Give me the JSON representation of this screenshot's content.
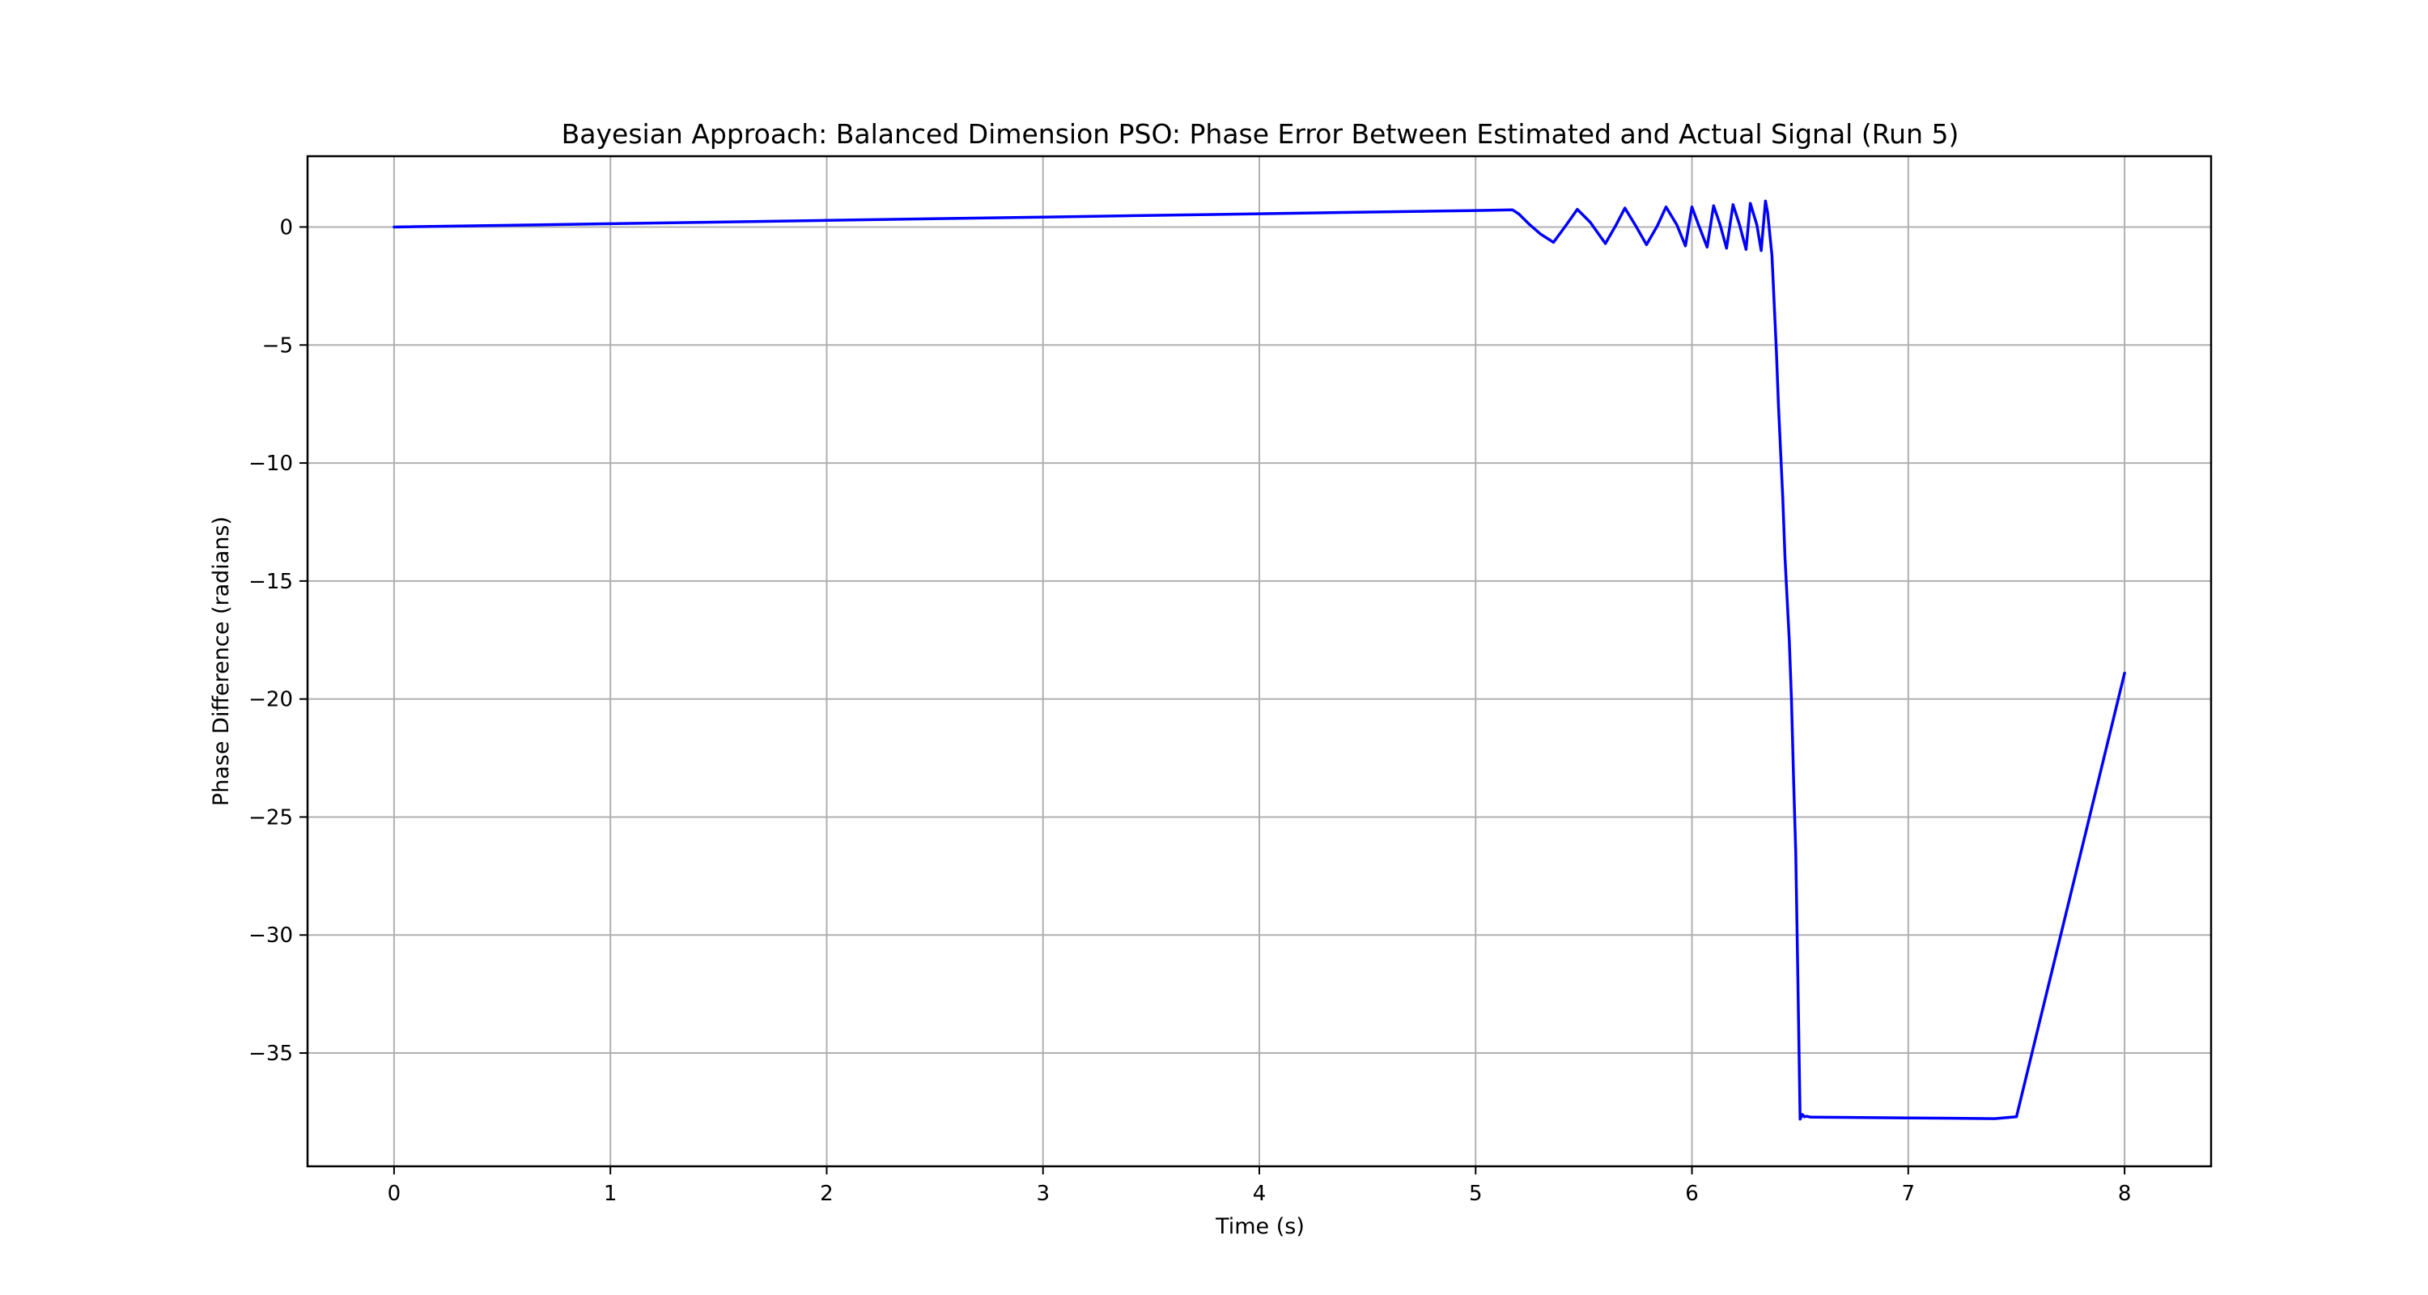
{
  "chart_data": {
    "type": "line",
    "title": "Bayesian Approach: Balanced Dimension PSO: Phase Error Between Estimated and Actual Signal (Run 5)",
    "xlabel": "Time (s)",
    "ylabel": "Phase Difference (radians)",
    "xlim": [
      -0.4,
      8.4
    ],
    "ylim": [
      -39.8,
      3.0
    ],
    "xticks": [
      0,
      1,
      2,
      3,
      4,
      5,
      6,
      7,
      8
    ],
    "yticks": [
      0,
      -5,
      -10,
      -15,
      -20,
      -25,
      -30,
      -35
    ],
    "xtick_labels": [
      "0",
      "1",
      "2",
      "3",
      "4",
      "5",
      "6",
      "7",
      "8"
    ],
    "ytick_labels": [
      "0",
      "−5",
      "−10",
      "−15",
      "−20",
      "−25",
      "−30",
      "−35"
    ],
    "grid": true,
    "series": [
      {
        "color": "#0000ff",
        "x": [
          0,
          1,
          2,
          3,
          4,
          5.0,
          5.17,
          5.2,
          5.25,
          5.3,
          5.36,
          5.42,
          5.47,
          5.53,
          5.6,
          5.65,
          5.69,
          5.74,
          5.79,
          5.84,
          5.88,
          5.93,
          5.97,
          6.0,
          6.03,
          6.07,
          6.1,
          6.13,
          6.16,
          6.19,
          6.22,
          6.25,
          6.27,
          6.3,
          6.32,
          6.34,
          6.35,
          6.37,
          6.39,
          6.4,
          6.42,
          6.43,
          6.45,
          6.46,
          6.47,
          6.48,
          6.49,
          6.5,
          6.51,
          6.52,
          6.53,
          6.55,
          7.0,
          7.4,
          7.5,
          8.0
        ],
        "y": [
          0,
          0.14,
          0.28,
          0.42,
          0.56,
          0.7,
          0.73,
          0.55,
          0.1,
          -0.3,
          -0.65,
          0.1,
          0.75,
          0.2,
          -0.7,
          0.1,
          0.8,
          0.05,
          -0.75,
          0.05,
          0.85,
          0.1,
          -0.8,
          0.85,
          0.1,
          -0.85,
          0.9,
          0.1,
          -0.9,
          0.95,
          0.1,
          -0.95,
          1.0,
          0.1,
          -1.0,
          1.1,
          0.6,
          -1.2,
          -5.2,
          -7.6,
          -11.5,
          -14.0,
          -17.5,
          -20.0,
          -23.5,
          -26.5,
          -32.0,
          -37.8,
          -37.6,
          -37.7,
          -37.68,
          -37.72,
          -37.75,
          -37.78,
          -37.7,
          -18.9
        ]
      }
    ]
  }
}
